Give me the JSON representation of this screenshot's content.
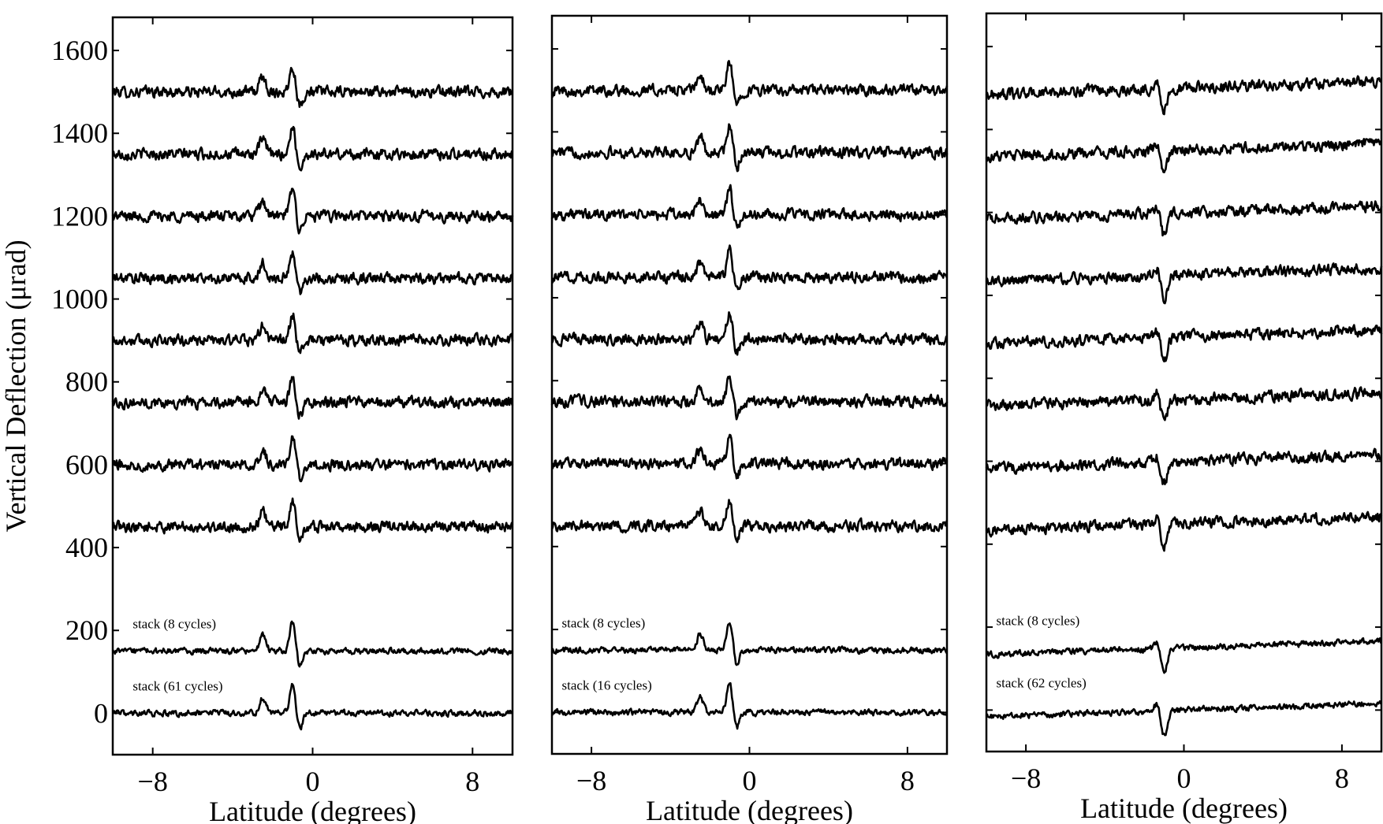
{
  "figure": {
    "ylabel": "Vertical Deflection (μrad)"
  },
  "chart_data": [
    {
      "type": "line",
      "xlabel": "Latitude (degrees)",
      "ylabel": "Vertical Deflection (μrad)",
      "xlim": [
        -10,
        10
      ],
      "ylim": [
        -100,
        1680
      ],
      "xticks": [
        -8,
        0,
        8
      ],
      "yticks": [
        0,
        200,
        400,
        600,
        800,
        1000,
        1200,
        1400,
        1600
      ],
      "show_ytick_labels": true,
      "grid": false,
      "feature_latitude": -1.0,
      "series": [
        {
          "offset": 1500
        },
        {
          "offset": 1350
        },
        {
          "offset": 1200
        },
        {
          "offset": 1050
        },
        {
          "offset": 900
        },
        {
          "offset": 750
        },
        {
          "offset": 600
        },
        {
          "offset": 450
        },
        {
          "name": "stack (8 cycles)",
          "offset": 150
        },
        {
          "name": "stack (61 cycles)",
          "offset": 0
        }
      ]
    },
    {
      "type": "line",
      "xlabel": "Latitude (degrees)",
      "ylabel": "",
      "xlim": [
        -10,
        10
      ],
      "ylim": [
        -100,
        1680
      ],
      "xticks": [
        -8,
        0,
        8
      ],
      "yticks": [
        0,
        200,
        400,
        600,
        800,
        1000,
        1200,
        1400,
        1600
      ],
      "show_ytick_labels": false,
      "grid": false,
      "feature_latitude": -1.0,
      "series": [
        {
          "offset": 1500
        },
        {
          "offset": 1350
        },
        {
          "offset": 1200
        },
        {
          "offset": 1050
        },
        {
          "offset": 900
        },
        {
          "offset": 750
        },
        {
          "offset": 600
        },
        {
          "offset": 450
        },
        {
          "name": "stack (8 cycles)",
          "offset": 150
        },
        {
          "name": "stack (16 cycles)",
          "offset": 0
        }
      ]
    },
    {
      "type": "line",
      "xlabel": "Latitude (degrees)",
      "ylabel": "",
      "xlim": [
        -10,
        10
      ],
      "ylim": [
        -100,
        1680
      ],
      "xticks": [
        -8,
        0,
        8
      ],
      "yticks": [
        0,
        200,
        400,
        600,
        800,
        1000,
        1200,
        1400,
        1600
      ],
      "show_ytick_labels": false,
      "grid": false,
      "feature_latitude": -1.0,
      "series": [
        {
          "offset": 1500
        },
        {
          "offset": 1350
        },
        {
          "offset": 1200
        },
        {
          "offset": 1050
        },
        {
          "offset": 900
        },
        {
          "offset": 750
        },
        {
          "offset": 600
        },
        {
          "offset": 450
        },
        {
          "name": "stack (8 cycles)",
          "offset": 150
        },
        {
          "name": "stack (62 cycles)",
          "offset": 0
        }
      ]
    }
  ]
}
